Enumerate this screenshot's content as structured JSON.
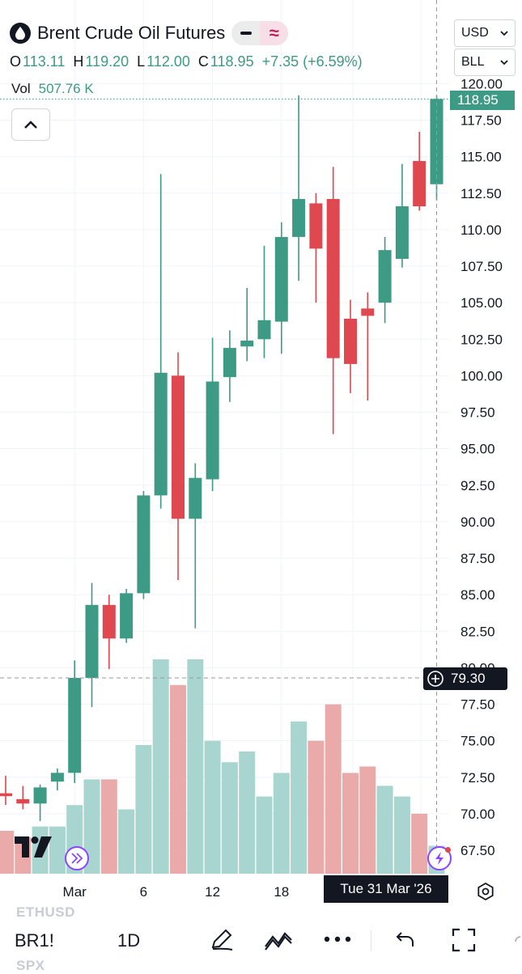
{
  "header": {
    "title": "Brent Crude Oil Futures",
    "ohlc": {
      "o_label": "O",
      "o": "113.11",
      "h_label": "H",
      "h": "119.20",
      "l_label": "L",
      "l": "112.00",
      "c_label": "C",
      "c": "118.95",
      "change": "+7.35 (+6.59%)"
    },
    "volume_label": "Vol",
    "volume_value": "507.76 K"
  },
  "selectors": {
    "currency": "USD",
    "unit": "BLL"
  },
  "colors": {
    "up": "#3d9a85",
    "down": "#e0484f",
    "vol_up": "#a8d5d0",
    "vol_down": "#eaaaa9"
  },
  "price_tag": "118.95",
  "crosshair_tag": "79.30",
  "date_tag": "Tue 31 Mar '26",
  "bottom": {
    "symbol": "BR1!",
    "interval": "1D",
    "ghost_above": "ETHUSD",
    "ghost_below": "SPX"
  },
  "chart_data": {
    "type": "candlestick",
    "ylim": [
      66.0,
      120.0
    ],
    "y_ticks": [
      67.5,
      70,
      72.5,
      75,
      77.5,
      80,
      82.5,
      85,
      87.5,
      90,
      92.5,
      95,
      97.5,
      100,
      102.5,
      105,
      107.5,
      110,
      112.5,
      115,
      117.5,
      120
    ],
    "y_tick_labels": [
      "67.50",
      "70.00",
      "72.50",
      "75.00",
      "77.50",
      "80.00",
      "82.50",
      "85.00",
      "87.50",
      "90.00",
      "92.50",
      "95.00",
      "97.50",
      "100.00",
      "102.50",
      "105.00",
      "107.50",
      "110.00",
      "112.50",
      "115.00",
      "117.50",
      "120.00"
    ],
    "x_tick_labels": [
      {
        "label": "Mar",
        "index": 4
      },
      {
        "label": "6",
        "index": 8
      },
      {
        "label": "12",
        "index": 12
      },
      {
        "label": "18",
        "index": 16
      }
    ],
    "candles": [
      {
        "o": 71.4,
        "h": 72.6,
        "l": 70.6,
        "c": 71.2
      },
      {
        "o": 71.0,
        "h": 71.9,
        "l": 70.3,
        "c": 70.7
      },
      {
        "o": 70.7,
        "h": 72.0,
        "l": 69.5,
        "c": 71.8
      },
      {
        "o": 72.2,
        "h": 73.1,
        "l": 71.6,
        "c": 72.8
      },
      {
        "o": 72.8,
        "h": 80.5,
        "l": 72.1,
        "c": 79.3
      },
      {
        "o": 79.3,
        "h": 85.8,
        "l": 77.3,
        "c": 84.3
      },
      {
        "o": 84.3,
        "h": 85.0,
        "l": 79.9,
        "c": 82.0
      },
      {
        "o": 82.0,
        "h": 85.4,
        "l": 81.7,
        "c": 85.1
      },
      {
        "o": 85.1,
        "h": 92.1,
        "l": 84.7,
        "c": 91.8
      },
      {
        "o": 91.8,
        "h": 113.8,
        "l": 90.9,
        "c": 100.2
      },
      {
        "o": 100.0,
        "h": 101.6,
        "l": 86.0,
        "c": 90.2
      },
      {
        "o": 90.2,
        "h": 94.0,
        "l": 82.7,
        "c": 93.0
      },
      {
        "o": 92.9,
        "h": 102.6,
        "l": 92.1,
        "c": 99.6
      },
      {
        "o": 99.9,
        "h": 103.1,
        "l": 98.2,
        "c": 101.9
      },
      {
        "o": 102.0,
        "h": 106.0,
        "l": 101.0,
        "c": 102.4
      },
      {
        "o": 102.5,
        "h": 108.9,
        "l": 101.2,
        "c": 103.8
      },
      {
        "o": 103.7,
        "h": 110.5,
        "l": 101.5,
        "c": 109.5
      },
      {
        "o": 109.5,
        "h": 119.2,
        "l": 106.5,
        "c": 112.1
      },
      {
        "o": 111.8,
        "h": 112.5,
        "l": 105.0,
        "c": 108.7
      },
      {
        "o": 112.1,
        "h": 114.3,
        "l": 96.0,
        "c": 101.2
      },
      {
        "o": 103.9,
        "h": 105.2,
        "l": 98.8,
        "c": 100.8
      },
      {
        "o": 104.6,
        "h": 105.7,
        "l": 98.3,
        "c": 104.1
      },
      {
        "o": 105.0,
        "h": 109.5,
        "l": 103.6,
        "c": 108.6
      },
      {
        "o": 108.0,
        "h": 114.5,
        "l": 107.4,
        "c": 111.6
      },
      {
        "o": 114.7,
        "h": 116.7,
        "l": 111.3,
        "c": 111.6
      },
      {
        "o": 113.11,
        "h": 119.2,
        "l": 112.0,
        "c": 118.95
      }
    ],
    "volume_relative": [
      0.2,
      0.17,
      0.22,
      0.22,
      0.32,
      0.44,
      0.44,
      0.3,
      0.6,
      1.0,
      0.88,
      1.0,
      0.62,
      0.52,
      0.57,
      0.36,
      0.47,
      0.71,
      0.62,
      0.79,
      0.47,
      0.5,
      0.41,
      0.36,
      0.28,
      0.13
    ]
  }
}
